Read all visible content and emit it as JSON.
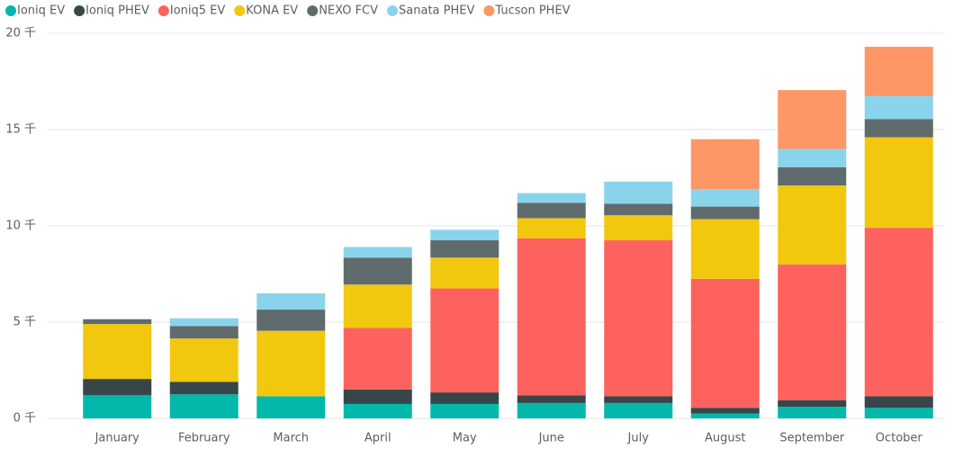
{
  "chart_data": {
    "type": "stacked_bar",
    "categories": [
      "January",
      "February",
      "March",
      "April",
      "May",
      "June",
      "July",
      "August",
      "September",
      "October"
    ],
    "series": [
      {
        "name": "Ioniq EV",
        "color": "#01b8aa",
        "values": [
          1.2,
          1.25,
          1.15,
          0.75,
          0.75,
          0.8,
          0.8,
          0.25,
          0.6,
          0.55
        ]
      },
      {
        "name": "Ioniq PHEV",
        "color": "#374649",
        "values": [
          0.85,
          0.65,
          0,
          0.75,
          0.6,
          0.4,
          0.35,
          0.3,
          0.35,
          0.6
        ]
      },
      {
        "name": "Ioniq5 EV",
        "color": "#fd625e",
        "values": [
          0,
          0,
          0,
          3.2,
          5.4,
          8.15,
          8.1,
          6.7,
          7.05,
          8.75
        ]
      },
      {
        "name": "KONA EV",
        "color": "#f2c80f",
        "values": [
          2.85,
          2.25,
          3.4,
          2.25,
          1.6,
          1.05,
          1.3,
          3.1,
          4.1,
          4.7
        ]
      },
      {
        "name": "NEXO FCV",
        "color": "#5f6b6d",
        "values": [
          0.25,
          0.65,
          1.1,
          1.4,
          0.9,
          0.8,
          0.6,
          0.65,
          0.95,
          0.95
        ]
      },
      {
        "name": "Sanata PHEV",
        "color": "#8ad4eb",
        "values": [
          0,
          0.4,
          0.85,
          0.55,
          0.55,
          0.5,
          1.15,
          0.9,
          0.95,
          1.2
        ]
      },
      {
        "name": "Tucson PHEV",
        "color": "#fe9666",
        "values": [
          0,
          0,
          0,
          0,
          0,
          0,
          0,
          2.6,
          3.05,
          2.55
        ]
      }
    ],
    "ylim": [
      0,
      20
    ],
    "yticks": [
      {
        "value": 0,
        "label": "0 千"
      },
      {
        "value": 5,
        "label": "5 千"
      },
      {
        "value": 10,
        "label": "10 千"
      },
      {
        "value": 15,
        "label": "15 千"
      },
      {
        "value": 20,
        "label": "20 千"
      }
    ],
    "grid": true
  }
}
